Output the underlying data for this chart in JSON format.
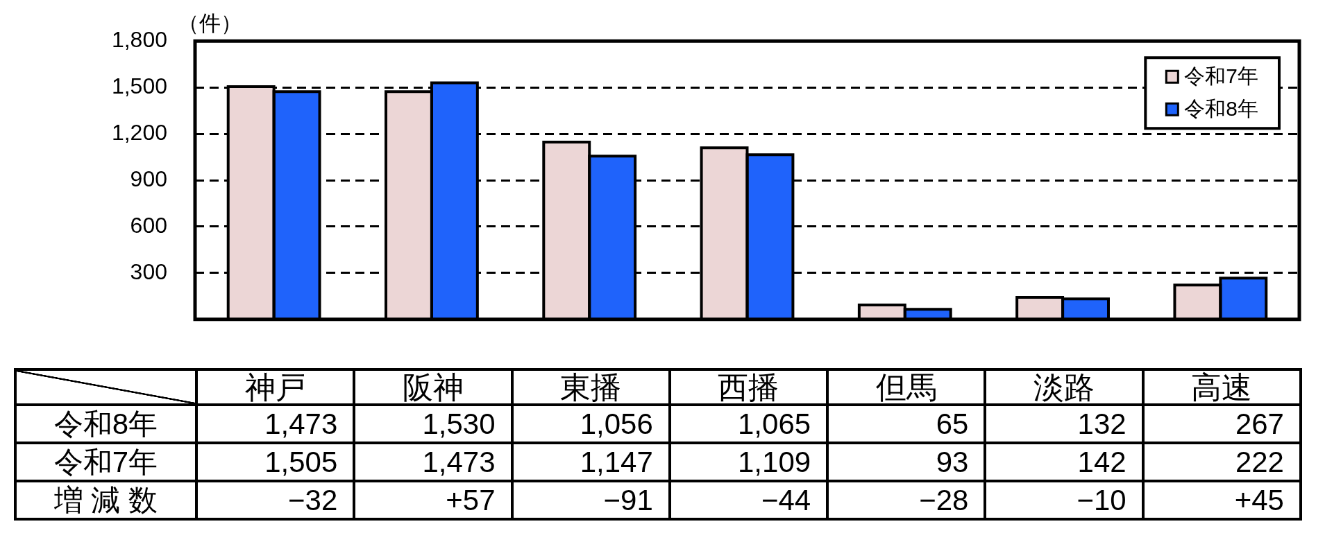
{
  "chart_data": {
    "type": "bar",
    "ylabel": "（件）",
    "categories": [
      "神戸",
      "阪神",
      "東播",
      "西播",
      "但馬",
      "淡路",
      "高速"
    ],
    "series": [
      {
        "name": "令和7年",
        "color": "#ecd6d6",
        "values": [
          1505,
          1473,
          1147,
          1109,
          93,
          142,
          222
        ],
        "value_labels": [
          "1,505",
          "1,473",
          "1,147",
          "1,109",
          "93",
          "142",
          "222"
        ]
      },
      {
        "name": "令和8年",
        "color": "#1f63fb",
        "values": [
          1473,
          1530,
          1056,
          1065,
          65,
          132,
          267
        ],
        "value_labels": [
          "1,473",
          "1,530",
          "1,056",
          "1,065",
          "65",
          "132",
          "267"
        ]
      }
    ],
    "ylim": [
      0,
      1800
    ],
    "yticks": [
      300,
      600,
      900,
      {
        "value": 1200,
        "label": "1,200"
      },
      {
        "value": 1500,
        "label": "1,500"
      },
      {
        "value": 1800,
        "label": "1,800"
      }
    ],
    "grid": "y",
    "legend": "top right",
    "annotations": [
      "増 減 数",
      "−32",
      "+57",
      "−91",
      "−44",
      "−28",
      "−10",
      "+45"
    ]
  }
}
